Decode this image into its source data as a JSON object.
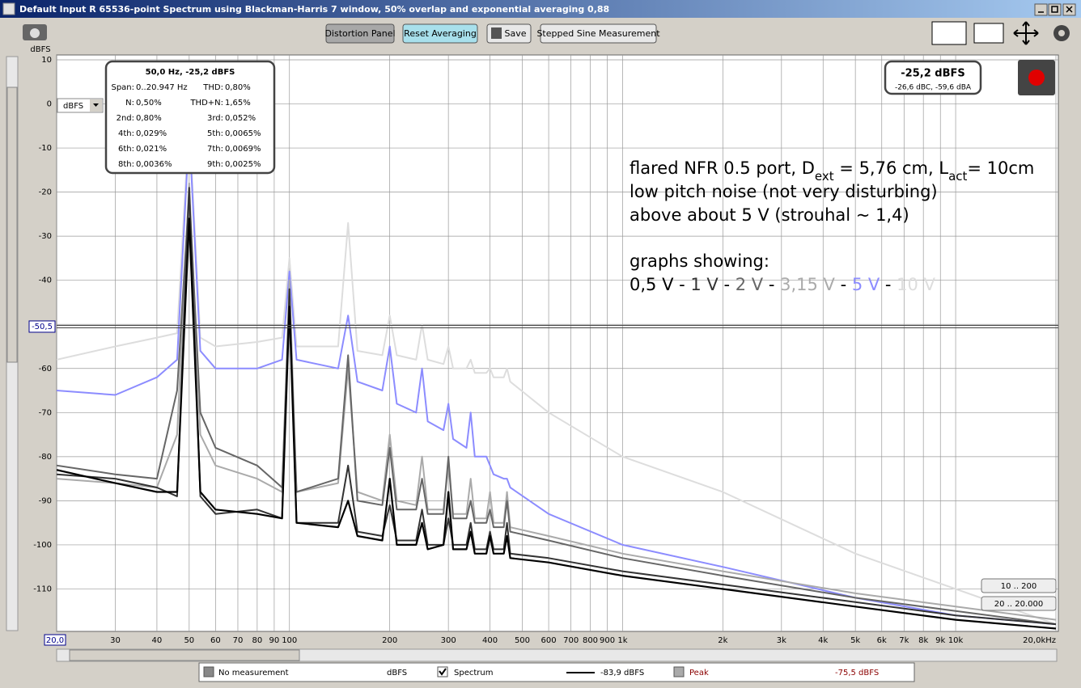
{
  "window": {
    "title": "Default Input R 65536-point Spectrum using Blackman-Harris 7 window, 50% overlap and exponential averaging 0,88"
  },
  "toolbar": {
    "buttons": [
      "Distortion Panel",
      "Reset Averaging",
      "Save",
      "Stepped Sine Measurement"
    ]
  },
  "unit_select": "dBFS",
  "readout": {
    "level": "-25,2 dBFS",
    "weighted": "-26,6 dBC, -59,6 dBA"
  },
  "distortion": {
    "header": "50,0 Hz, -25,2 dBFS",
    "rows": [
      [
        "Span:",
        "0..20.947 Hz",
        "THD:",
        "0,80%"
      ],
      [
        "N:",
        "0,50%",
        "THD+N:",
        "1,65%"
      ],
      [
        "2nd:",
        "0,80%",
        "3rd:",
        "0,052%"
      ],
      [
        "4th:",
        "0,029%",
        "5th:",
        "0,0065%"
      ],
      [
        "6th:",
        "0,021%",
        "7th:",
        "0,0069%"
      ],
      [
        "8th:",
        "0,0036%",
        "9th:",
        "0,0025%"
      ]
    ]
  },
  "annotation": {
    "line1": [
      "flared NFR 0.5 port, D",
      "ext",
      " = 5,76 cm, L",
      "act",
      "= 10cm"
    ],
    "line2": "low pitch noise (not very disturbing)",
    "line3": "above about 5 V (strouhal ~ 1,4)",
    "line4": "graphs showing:",
    "separator": " - "
  },
  "range_buttons": [
    "10 .. 200",
    "20 .. 20.000"
  ],
  "legend": {
    "off": "No measurement",
    "off_unit": "dBFS",
    "spectrum": "Spectrum",
    "spectrum_value": "-83,9 dBFS",
    "peak": "Peak",
    "peak_value": "-75,5 dBFS"
  },
  "chart_data": {
    "type": "line",
    "y_label": "dBFS",
    "log_x": true,
    "grid": true,
    "xlim": [
      20,
      20000
    ],
    "ylim": [
      -120,
      10
    ],
    "xticks": [
      {
        "value": 20,
        "label": "20,0"
      },
      30,
      40,
      50,
      60,
      70,
      80,
      90,
      100,
      200,
      300,
      400,
      500,
      600,
      700,
      800,
      900,
      {
        "value": 1000,
        "label": "1k"
      },
      {
        "value": 2000,
        "label": "2k"
      },
      {
        "value": 3000,
        "label": "3k"
      },
      {
        "value": 4000,
        "label": "4k"
      },
      {
        "value": 5000,
        "label": "5k"
      },
      {
        "value": 6000,
        "label": "6k"
      },
      {
        "value": 7000,
        "label": "7k"
      },
      {
        "value": 8000,
        "label": "8k"
      },
      {
        "value": 9000,
        "label": "9k"
      },
      {
        "value": 10000,
        "label": "10k"
      },
      {
        "value": 20000,
        "label": "20,0kHz"
      }
    ],
    "yticks": [
      10,
      0,
      -10,
      -20,
      -30,
      -40,
      -50,
      -60,
      -70,
      -80,
      -90,
      -100,
      -110
    ],
    "cursor": {
      "value": -50.5,
      "label": "-50,5"
    },
    "x": [
      20,
      30,
      40,
      46,
      50,
      54,
      60,
      80,
      95,
      100,
      105,
      140,
      150,
      160,
      190,
      200,
      210,
      240,
      250,
      260,
      290,
      300,
      310,
      340,
      350,
      360,
      390,
      400,
      410,
      440,
      450,
      460,
      600,
      1000,
      2000,
      5000,
      10000,
      20000
    ],
    "series": [
      {
        "name": "0,5 V",
        "color": "#000000",
        "width": 2.2,
        "values": [
          -83,
          -86,
          -88,
          -88,
          -26,
          -88,
          -92,
          -93,
          -94,
          -46,
          -95,
          -96,
          -90,
          -98,
          -99,
          -85,
          -100,
          -100,
          -95,
          -101,
          -100,
          -88,
          -101,
          -101,
          -97,
          -102,
          -102,
          -98,
          -102,
          -102,
          -98,
          -103,
          -104,
          -107,
          -110,
          -114,
          -117,
          -119
        ]
      },
      {
        "name": "1 V",
        "color": "#333333",
        "width": 2,
        "values": [
          -84,
          -85,
          -87,
          -89,
          -19,
          -89,
          -93,
          -92,
          -94,
          -42,
          -95,
          -95,
          -82,
          -97,
          -98,
          -91,
          -99,
          -99,
          -92,
          -100,
          -100,
          -94,
          -100,
          -100,
          -95,
          -101,
          -101,
          -97,
          -101,
          -101,
          -95,
          -102,
          -103,
          -106,
          -109,
          -113,
          -116,
          -118
        ]
      },
      {
        "name": "2 V",
        "color": "#666666",
        "width": 2,
        "values": [
          -82,
          -84,
          -85,
          -65,
          -20,
          -70,
          -78,
          -82,
          -87,
          -45,
          -88,
          -85,
          -57,
          -90,
          -91,
          -78,
          -92,
          -92,
          -85,
          -93,
          -93,
          -80,
          -94,
          -94,
          -90,
          -95,
          -95,
          -92,
          -96,
          -96,
          -90,
          -97,
          -99,
          -103,
          -107,
          -112,
          -115,
          -118
        ]
      },
      {
        "name": "3,15 V",
        "color": "#aaaaaa",
        "width": 2,
        "values": [
          -85,
          -86,
          -87,
          -75,
          -18,
          -75,
          -82,
          -85,
          -88,
          -40,
          -88,
          -86,
          -60,
          -88,
          -90,
          -75,
          -90,
          -91,
          -80,
          -92,
          -92,
          -82,
          -93,
          -93,
          -85,
          -94,
          -94,
          -88,
          -95,
          -95,
          -88,
          -96,
          -98,
          -102,
          -106,
          -111,
          -114,
          -117
        ]
      },
      {
        "name": "5 V",
        "color": "#8c8cff",
        "width": 2,
        "values": [
          -65,
          -66,
          -62,
          -58,
          -6,
          -56,
          -60,
          -60,
          -58,
          -38,
          -58,
          -60,
          -48,
          -63,
          -65,
          -55,
          -68,
          -70,
          -60,
          -72,
          -74,
          -68,
          -76,
          -78,
          -70,
          -80,
          -80,
          -82,
          -84,
          -85,
          -85,
          -87,
          -93,
          -100,
          -105,
          -112,
          -116,
          -118
        ]
      },
      {
        "name": "10 V",
        "color": "#dddddd",
        "width": 2,
        "values": [
          -58,
          -55,
          -53,
          -52,
          -4,
          -53,
          -55,
          -54,
          -53,
          -35,
          -55,
          -55,
          -27,
          -56,
          -57,
          -48,
          -57,
          -58,
          -50,
          -58,
          -59,
          -55,
          -60,
          -60,
          -58,
          -61,
          -61,
          -60,
          -62,
          -62,
          -60,
          -63,
          -70,
          -80,
          -88,
          -102,
          -110,
          -118
        ]
      }
    ]
  }
}
